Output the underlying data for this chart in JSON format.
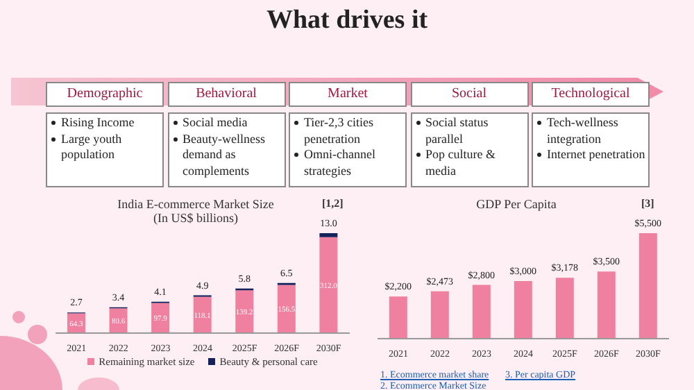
{
  "chart_data": [
    {
      "type": "other",
      "title": "What drives it",
      "categories": [
        "Demographic",
        "Behavioral",
        "Market",
        "Social",
        "Technological"
      ],
      "annotations": [
        {
          "text": "Rising Income",
          "x": "Demographic"
        },
        {
          "text": "Large youth population",
          "x": "Demographic"
        },
        {
          "text": "Social media",
          "x": "Behavioral"
        },
        {
          "text": "Beauty-wellness demand as complements",
          "x": "Behavioral"
        },
        {
          "text": "Tier-2,3 cities penetration",
          "x": "Market"
        },
        {
          "text": "Omni-channel strategies",
          "x": "Market"
        },
        {
          "text": "Social status parallel",
          "x": "Social"
        },
        {
          "text": "Pop culture & media",
          "x": "Social"
        },
        {
          "text": "Tech-wellness integration",
          "x": "Technological"
        },
        {
          "text": "Internet penetration",
          "x": "Technological"
        }
      ]
    },
    {
      "type": "bar",
      "title": "India E-commerce Market Size",
      "subtitle": "(In US$ billions)",
      "annotations": [
        "[1,2]"
      ],
      "categories": [
        "2021",
        "2022",
        "2023",
        "2024",
        "2025F",
        "2026F",
        "2030F"
      ],
      "stacked": true,
      "legend": "bottom",
      "series": [
        {
          "name": "Remaining market size",
          "color": "#f080a0",
          "values": [
            64.3,
            80.6,
            97.9,
            118.1,
            139.2,
            156.5,
            312.0
          ],
          "value_labels": [
            "64.3",
            "80.6",
            "97.9",
            "118.1",
            "139.2",
            "156.5",
            "312.0"
          ]
        },
        {
          "name": "Beauty & personal care",
          "color": "#14215a",
          "values": [
            2.7,
            3.4,
            4.1,
            4.9,
            5.8,
            6.5,
            13.0
          ],
          "value_labels": [
            "2.7",
            "3.4",
            "4.1",
            "4.9",
            "5.8",
            "6.5",
            "13.0"
          ]
        }
      ]
    },
    {
      "type": "bar",
      "title": "GDP Per Capita",
      "annotations": [
        "[3]",
        "1. Ecommerce market share",
        "2. Ecommerce Market Size",
        "3. Per capita GDP"
      ],
      "categories": [
        "2021",
        "2022",
        "2023",
        "2024",
        "2025F",
        "2026F",
        "2030F"
      ],
      "color": "#f080a0",
      "values": [
        2200,
        2473,
        2800,
        3000,
        3178,
        3500,
        5500
      ],
      "value_labels": [
        "$2,200",
        "$2,473",
        "$2,800",
        "$3,000",
        "$3,178",
        "$3,500",
        "$5,500"
      ]
    }
  ]
}
